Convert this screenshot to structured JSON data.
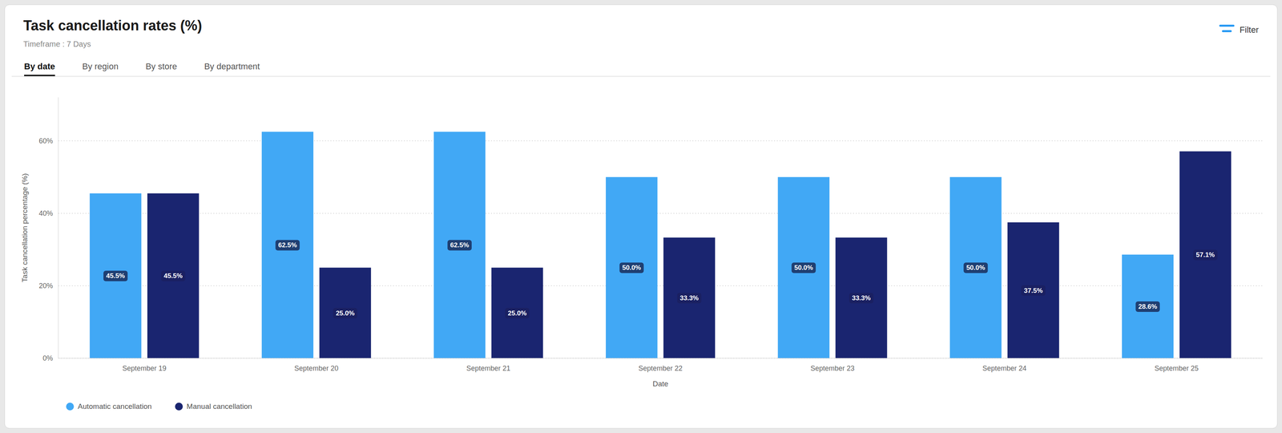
{
  "chart_data": {
    "type": "bar",
    "title": "Task cancellation rates (%)",
    "subtitle": "Timeframe : 7 Days",
    "annotations": [
      "By date",
      "By region",
      "By store",
      "By department",
      "Filter"
    ],
    "x_label": "Date",
    "y_label": "Task cancellation percentage (%)",
    "categories": [
      "September 19",
      "September 20",
      "September 21",
      "September 22",
      "September 23",
      "September 24",
      "September 25"
    ],
    "series": [
      {
        "name": "Automatic cancellation",
        "color": "#41a8f5",
        "values": [
          45.5,
          62.5,
          62.5,
          50.0,
          50.0,
          50.0,
          28.6
        ],
        "value_labels": [
          "45.5%",
          "62.5%",
          "62.5%",
          "50.0%",
          "50.0%",
          "50.0%",
          "28.6%"
        ]
      },
      {
        "name": "Manual cancellation",
        "color": "#1a2570",
        "values": [
          45.5,
          25.0,
          25.0,
          33.3,
          33.3,
          37.5,
          57.1
        ],
        "value_labels": [
          "45.5%",
          "25.0%",
          "25.0%",
          "33.3%",
          "33.3%",
          "37.5%",
          "57.1%"
        ]
      }
    ],
    "ylim": [
      0,
      72
    ],
    "yticks": [
      {
        "value": 0,
        "label": "0%"
      },
      {
        "value": 20,
        "label": "20%"
      },
      {
        "value": 40,
        "label": "40%"
      },
      {
        "value": 60,
        "label": "60%"
      }
    ],
    "grid": true,
    "legend": "bottom",
    "data_labels": true
  }
}
